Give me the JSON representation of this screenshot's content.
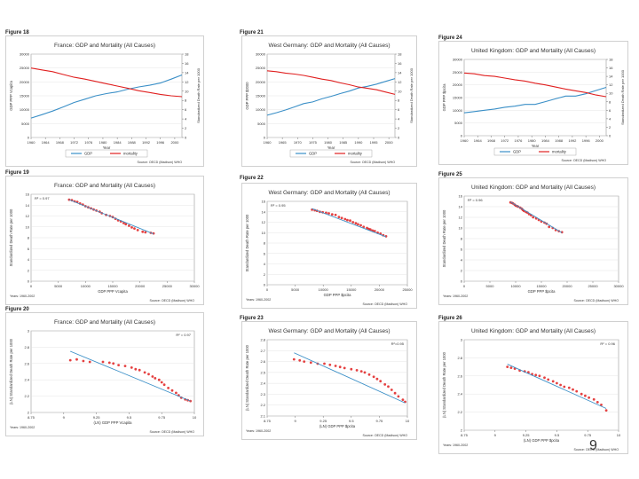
{
  "page": {
    "page_number": "9"
  },
  "colors": {
    "gdp": "#3a8fc7",
    "mortality": "#e02020",
    "fit": "#3a8fc7",
    "scatter": "#e02020",
    "axis": "#555555",
    "grid": "#dddddd"
  },
  "chart_data": [
    {
      "figure_label": "Figure 18",
      "type": "line",
      "title": "France: GDP and Mortality (All Causes)",
      "xlabel": "Year",
      "ylabel": "GDP PPP Vcapita",
      "y2label": "Standardized Death Rate per 1000",
      "x": [
        1960,
        1963,
        1966,
        1969,
        1972,
        1975,
        1978,
        1981,
        1984,
        1987,
        1990,
        1993,
        1996,
        1999,
        2002
      ],
      "xticks": [
        1960,
        1964,
        1968,
        1972,
        1976,
        1980,
        1984,
        1988,
        1992,
        1996,
        2000
      ],
      "ylim": [
        0,
        30000
      ],
      "yticks": [
        0,
        5000,
        10000,
        15000,
        20000,
        25000,
        30000
      ],
      "y2lim": [
        0,
        18
      ],
      "y2ticks": [
        0,
        2,
        4,
        6,
        8,
        10,
        12,
        14,
        16,
        18
      ],
      "series": [
        {
          "name": "GDP",
          "axis": "left",
          "values": [
            7000,
            8200,
            9500,
            11000,
            12600,
            13800,
            15000,
            15800,
            16400,
            17400,
            18200,
            18800,
            19600,
            21000,
            22500
          ]
        },
        {
          "name": "mortality",
          "axis": "right",
          "values": [
            15.0,
            14.6,
            14.2,
            13.6,
            13.0,
            12.6,
            12.1,
            11.6,
            11.1,
            10.6,
            10.1,
            9.7,
            9.3,
            9.0,
            8.8
          ]
        }
      ],
      "legend": [
        "GDP",
        "mortality"
      ],
      "source": "Source: OECD (Madison) WHO"
    },
    {
      "figure_label": "Figure 21",
      "type": "line",
      "title": "West Germany: GDP and Mortality (All Causes)",
      "xlabel": "Year",
      "ylabel": "GDP PPP $2000",
      "y2label": "Standardized Death Rate per 1000",
      "x": [
        1960,
        1963,
        1966,
        1969,
        1972,
        1975,
        1978,
        1981,
        1984,
        1987,
        1990,
        1993,
        1996,
        1999,
        2002
      ],
      "xticks": [
        1960,
        1965,
        1970,
        1975,
        1980,
        1985,
        1990,
        1995,
        2000
      ],
      "ylim": [
        0,
        30000
      ],
      "yticks": [
        0,
        5000,
        10000,
        15000,
        20000,
        25000,
        30000
      ],
      "y2lim": [
        0,
        18
      ],
      "y2ticks": [
        0,
        2,
        4,
        6,
        8,
        10,
        12,
        14,
        16,
        18
      ],
      "series": [
        {
          "name": "GDP",
          "axis": "left",
          "values": [
            8000,
            8900,
            9900,
            11000,
            12200,
            12800,
            13900,
            14800,
            15800,
            16700,
            17800,
            18400,
            19200,
            20200,
            21200
          ]
        },
        {
          "name": "mortality",
          "axis": "right",
          "values": [
            14.4,
            14.2,
            13.9,
            13.7,
            13.4,
            13.0,
            12.6,
            12.3,
            11.8,
            11.4,
            10.9,
            10.6,
            10.3,
            9.8,
            9.3
          ]
        }
      ],
      "legend": [
        "GDP",
        "mortality"
      ],
      "source": "Source: OECD (Madison) WHO"
    },
    {
      "figure_label": "Figure 24",
      "type": "line",
      "title": "United Kingdom: GDP and Mortality (All Causes)",
      "xlabel": "Year",
      "ylabel": "GDP PPP $pcita",
      "y2label": "Standardized Death Rate per 1000",
      "x": [
        1960,
        1963,
        1966,
        1969,
        1972,
        1975,
        1978,
        1981,
        1984,
        1987,
        1990,
        1993,
        1996,
        1999,
        2002
      ],
      "xticks": [
        1960,
        1964,
        1968,
        1972,
        1976,
        1980,
        1984,
        1988,
        1992,
        1996,
        2000
      ],
      "ylim": [
        0,
        30000
      ],
      "yticks": [
        0,
        5000,
        10000,
        15000,
        20000,
        25000,
        30000
      ],
      "y2lim": [
        0,
        18
      ],
      "y2ticks": [
        0,
        2,
        4,
        6,
        8,
        10,
        12,
        14,
        16,
        18
      ],
      "series": [
        {
          "name": "GDP",
          "axis": "left",
          "values": [
            9000,
            9500,
            10000,
            10500,
            11200,
            11600,
            12300,
            12300,
            13400,
            14500,
            15600,
            15600,
            16500,
            17800,
            19000
          ]
        },
        {
          "name": "mortality",
          "axis": "right",
          "values": [
            14.8,
            14.6,
            14.2,
            14.0,
            13.6,
            13.2,
            12.9,
            12.4,
            12.0,
            11.5,
            11.0,
            10.6,
            10.2,
            9.6,
            9.2
          ]
        }
      ],
      "legend": [
        "GDP",
        "mortality"
      ],
      "source": "Source: OECD (Madison) WHO"
    },
    {
      "figure_label": "Figure 19",
      "type": "scatter",
      "title": "France: GDP and Mortality (All Causes)",
      "xlabel": "GDP PPP Vcapita",
      "ylabel": "Standardized Death Rate per 1000",
      "xlim": [
        0,
        30000
      ],
      "xticks": [
        0,
        5000,
        10000,
        15000,
        20000,
        25000,
        30000
      ],
      "ylim": [
        0,
        16
      ],
      "yticks": [
        0,
        2,
        4,
        6,
        8,
        10,
        12,
        14,
        16
      ],
      "r2_label": "R² = 0.97",
      "points": [
        [
          7000,
          15.0
        ],
        [
          7500,
          14.9
        ],
        [
          8000,
          14.7
        ],
        [
          8500,
          14.6
        ],
        [
          9000,
          14.3
        ],
        [
          9500,
          14.1
        ],
        [
          10000,
          13.8
        ],
        [
          10500,
          13.6
        ],
        [
          11000,
          13.4
        ],
        [
          11500,
          13.2
        ],
        [
          12000,
          13.0
        ],
        [
          12600,
          12.8
        ],
        [
          13000,
          12.5
        ],
        [
          13800,
          12.2
        ],
        [
          14500,
          12.0
        ],
        [
          15000,
          11.8
        ],
        [
          15500,
          11.5
        ],
        [
          16000,
          11.2
        ],
        [
          16500,
          11.0
        ],
        [
          17000,
          10.7
        ],
        [
          17400,
          10.5
        ],
        [
          18000,
          10.2
        ],
        [
          18500,
          9.9
        ],
        [
          19000,
          9.7
        ],
        [
          19600,
          9.4
        ],
        [
          20500,
          9.1
        ],
        [
          21000,
          9.0
        ],
        [
          22000,
          8.9
        ],
        [
          22500,
          8.8
        ]
      ],
      "fit": [
        [
          7000,
          15.0
        ],
        [
          22500,
          8.7
        ]
      ],
      "note": "Years: 1960-2002",
      "source": "Source: OECD (Madison) WHO"
    },
    {
      "figure_label": "Figure 22",
      "type": "scatter",
      "title": "West Germany: GDP and Mortality (All Causes)",
      "xlabel": "GDP PPP $pcita",
      "ylabel": "Standardized Death Rate per 1000",
      "xlim": [
        0,
        25000
      ],
      "xticks": [
        0,
        5000,
        10000,
        15000,
        20000,
        25000
      ],
      "ylim": [
        0,
        16
      ],
      "yticks": [
        0,
        2,
        4,
        6,
        8,
        10,
        12,
        14,
        16
      ],
      "r2_label": "R² = 0.95",
      "points": [
        [
          8000,
          14.4
        ],
        [
          8500,
          14.3
        ],
        [
          8900,
          14.2
        ],
        [
          9400,
          14.0
        ],
        [
          9900,
          13.9
        ],
        [
          10500,
          13.8
        ],
        [
          11000,
          13.7
        ],
        [
          11600,
          13.5
        ],
        [
          12200,
          13.4
        ],
        [
          12800,
          13.0
        ],
        [
          13300,
          12.8
        ],
        [
          13900,
          12.6
        ],
        [
          14300,
          12.4
        ],
        [
          14800,
          12.3
        ],
        [
          15300,
          12.0
        ],
        [
          15800,
          11.8
        ],
        [
          16200,
          11.6
        ],
        [
          16700,
          11.4
        ],
        [
          17200,
          11.1
        ],
        [
          17800,
          10.9
        ],
        [
          18100,
          10.7
        ],
        [
          18400,
          10.6
        ],
        [
          18800,
          10.4
        ],
        [
          19200,
          10.3
        ],
        [
          19700,
          10.0
        ],
        [
          20200,
          9.8
        ],
        [
          20700,
          9.5
        ],
        [
          21200,
          9.3
        ]
      ],
      "fit": [
        [
          8000,
          14.6
        ],
        [
          21200,
          9.2
        ]
      ],
      "note": "Years: 1960-2002",
      "source": "Source: OECD (Madison) WHO"
    },
    {
      "figure_label": "Figure 25",
      "type": "scatter",
      "title": "United Kingdom: GDP and Mortality (All Causes)",
      "xlabel": "GDP PPP $pcita",
      "ylabel": "Standardized Death Rate per 1000",
      "xlim": [
        0,
        30000
      ],
      "xticks": [
        0,
        5000,
        10000,
        15000,
        20000,
        25000,
        30000
      ],
      "ylim": [
        0,
        16
      ],
      "yticks": [
        0,
        2,
        4,
        6,
        8,
        10,
        12,
        14,
        16
      ],
      "r2_label": "R² = 0.96",
      "points": [
        [
          9000,
          14.8
        ],
        [
          9300,
          14.7
        ],
        [
          9500,
          14.6
        ],
        [
          9800,
          14.4
        ],
        [
          10000,
          14.2
        ],
        [
          10300,
          14.1
        ],
        [
          10500,
          14.0
        ],
        [
          10900,
          13.8
        ],
        [
          11200,
          13.6
        ],
        [
          11400,
          13.4
        ],
        [
          11600,
          13.2
        ],
        [
          12000,
          13.0
        ],
        [
          12300,
          12.9
        ],
        [
          12600,
          12.6
        ],
        [
          13000,
          12.4
        ],
        [
          13400,
          12.0
        ],
        [
          14000,
          11.8
        ],
        [
          14500,
          11.5
        ],
        [
          15000,
          11.2
        ],
        [
          15600,
          11.0
        ],
        [
          16000,
          10.8
        ],
        [
          16500,
          10.2
        ],
        [
          17200,
          10.0
        ],
        [
          17800,
          9.6
        ],
        [
          18400,
          9.4
        ],
        [
          19000,
          9.2
        ]
      ],
      "fit": [
        [
          9000,
          14.9
        ],
        [
          19000,
          9.1
        ]
      ],
      "note": "Years: 1960-2002",
      "source": "Source: OECD (Madison) WHO"
    },
    {
      "figure_label": "Figure 20",
      "type": "scatter",
      "title": "France: GDP and Mortality (All Causes)",
      "xlabel": "(LN) GDP PPP Vcapita",
      "ylabel": "(LN) Standardized Death Rate per 1000",
      "xlim": [
        8.75,
        10.0
      ],
      "xticks": [
        8.75,
        9.0,
        9.25,
        9.5,
        9.75,
        10.0
      ],
      "ylim": [
        2.0,
        3.0
      ],
      "yticks": [
        2.0,
        2.2,
        2.4,
        2.6,
        2.8,
        3.0
      ],
      "r2_label": "R² = 0.97",
      "points": [
        [
          9.05,
          2.64
        ],
        [
          9.1,
          2.65
        ],
        [
          9.15,
          2.63
        ],
        [
          9.2,
          2.62
        ],
        [
          9.3,
          2.62
        ],
        [
          9.35,
          2.61
        ],
        [
          9.38,
          2.6
        ],
        [
          9.42,
          2.58
        ],
        [
          9.47,
          2.57
        ],
        [
          9.52,
          2.55
        ],
        [
          9.55,
          2.53
        ],
        [
          9.58,
          2.52
        ],
        [
          9.62,
          2.49
        ],
        [
          9.65,
          2.47
        ],
        [
          9.68,
          2.44
        ],
        [
          9.7,
          2.42
        ],
        [
          9.73,
          2.4
        ],
        [
          9.75,
          2.37
        ],
        [
          9.77,
          2.34
        ],
        [
          9.8,
          2.3
        ],
        [
          9.83,
          2.27
        ],
        [
          9.86,
          2.24
        ],
        [
          9.88,
          2.21
        ],
        [
          9.9,
          2.18
        ],
        [
          9.93,
          2.16
        ],
        [
          9.95,
          2.15
        ],
        [
          9.97,
          2.14
        ]
      ],
      "fit": [
        [
          9.05,
          2.75
        ],
        [
          9.97,
          2.14
        ]
      ],
      "note": "Years: 1960-2002",
      "source": "Source: OECD (Madison) WHO"
    },
    {
      "figure_label": "Figure 23",
      "type": "scatter",
      "title": "West Germany: GDP and Mortality (All Causes)",
      "xlabel": "(LN) GDP PPP $pcita",
      "ylabel": "(LN) Standardized Death Rate per 1000",
      "xlim": [
        8.75,
        10.0
      ],
      "xticks": [
        8.75,
        9.0,
        9.25,
        9.5,
        9.75,
        10.0
      ],
      "ylim": [
        2.1,
        2.8
      ],
      "yticks": [
        2.1,
        2.2,
        2.3,
        2.4,
        2.5,
        2.6,
        2.7,
        2.8
      ],
      "r2_label": "R²=0.95",
      "points": [
        [
          8.99,
          2.62
        ],
        [
          9.04,
          2.61
        ],
        [
          9.08,
          2.6
        ],
        [
          9.14,
          2.59
        ],
        [
          9.2,
          2.58
        ],
        [
          9.26,
          2.58
        ],
        [
          9.31,
          2.57
        ],
        [
          9.36,
          2.56
        ],
        [
          9.4,
          2.55
        ],
        [
          9.44,
          2.54
        ],
        [
          9.5,
          2.53
        ],
        [
          9.55,
          2.52
        ],
        [
          9.59,
          2.51
        ],
        [
          9.62,
          2.5
        ],
        [
          9.66,
          2.48
        ],
        [
          9.7,
          2.46
        ],
        [
          9.73,
          2.44
        ],
        [
          9.76,
          2.42
        ],
        [
          9.8,
          2.39
        ],
        [
          9.83,
          2.37
        ],
        [
          9.86,
          2.34
        ],
        [
          9.89,
          2.31
        ],
        [
          9.92,
          2.28
        ],
        [
          9.96,
          2.25
        ],
        [
          9.98,
          2.23
        ]
      ],
      "fit": [
        [
          8.99,
          2.68
        ],
        [
          9.98,
          2.22
        ]
      ],
      "note": "Years: 1960-2002",
      "source": "Source: OECD (Madison) WHO"
    },
    {
      "figure_label": "Figure 26",
      "type": "scatter",
      "title": "United Kingdom: GDP and Mortality (All Causes)",
      "xlabel": "(LN) GDP PPP $pcita",
      "ylabel": "(LN) Standardized Death Rate per 1000",
      "xlim": [
        8.75,
        10.0
      ],
      "xticks": [
        8.75,
        9.0,
        9.25,
        9.5,
        9.75,
        10.0
      ],
      "ylim": [
        2.0,
        3.0
      ],
      "yticks": [
        2.0,
        2.2,
        2.4,
        2.6,
        2.8,
        3.0
      ],
      "r2_label": "R² = 0.96",
      "points": [
        [
          9.1,
          2.7
        ],
        [
          9.13,
          2.69
        ],
        [
          9.16,
          2.68
        ],
        [
          9.2,
          2.66
        ],
        [
          9.24,
          2.65
        ],
        [
          9.27,
          2.64
        ],
        [
          9.3,
          2.62
        ],
        [
          9.33,
          2.61
        ],
        [
          9.36,
          2.6
        ],
        [
          9.4,
          2.58
        ],
        [
          9.43,
          2.56
        ],
        [
          9.47,
          2.54
        ],
        [
          9.5,
          2.52
        ],
        [
          9.53,
          2.5
        ],
        [
          9.56,
          2.48
        ],
        [
          9.6,
          2.47
        ],
        [
          9.63,
          2.45
        ],
        [
          9.66,
          2.43
        ],
        [
          9.7,
          2.4
        ],
        [
          9.73,
          2.38
        ],
        [
          9.76,
          2.36
        ],
        [
          9.8,
          2.34
        ],
        [
          9.83,
          2.31
        ],
        [
          9.86,
          2.28
        ],
        [
          9.9,
          2.22
        ]
      ],
      "fit": [
        [
          9.1,
          2.73
        ],
        [
          9.9,
          2.24
        ]
      ],
      "note": "Years: 1960-2002",
      "source": "Source: OECD (Madison) WHO"
    }
  ]
}
